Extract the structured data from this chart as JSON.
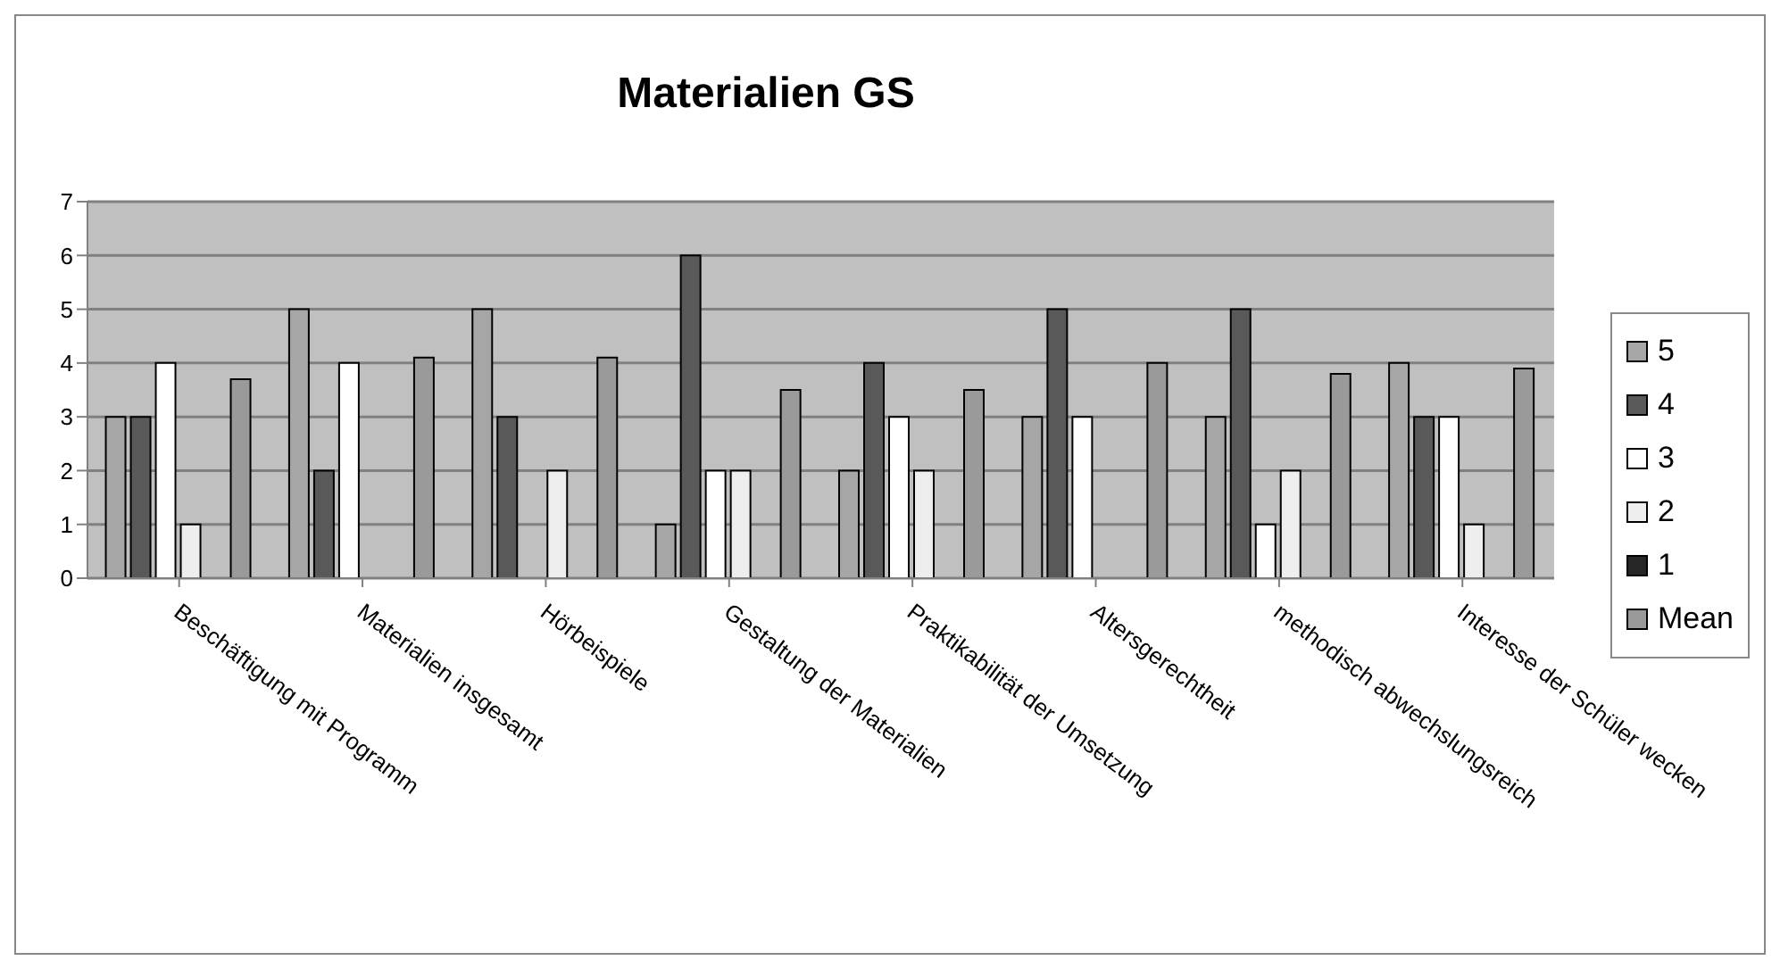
{
  "chart_data": {
    "type": "bar",
    "title": "Materialien GS",
    "categories": [
      "Beschäftigung mit Programm",
      "Materialien insgesamt",
      "Hörbeispiele",
      "Gestaltung der Materialien",
      "Praktikabilität der Umsetzung",
      "Altersgerechtheit",
      "methodisch abwechslungsreich",
      "Interesse der Schüler wecken"
    ],
    "series": [
      {
        "name": "5",
        "color": "#a6a6a6",
        "values": [
          3,
          5,
          5,
          1,
          2,
          3,
          3,
          4
        ]
      },
      {
        "name": "4",
        "color": "#595959",
        "values": [
          3,
          2,
          3,
          6,
          4,
          5,
          5,
          3
        ]
      },
      {
        "name": "3",
        "color": "#ffffff",
        "values": [
          4,
          4,
          0,
          2,
          3,
          3,
          1,
          3
        ]
      },
      {
        "name": "2",
        "color": "#eeeeee",
        "values": [
          1,
          0,
          2,
          2,
          2,
          0,
          2,
          1
        ]
      },
      {
        "name": "1",
        "color": "#262626",
        "values": [
          0,
          0,
          0,
          0,
          0,
          0,
          0,
          0
        ]
      },
      {
        "name": "Mean",
        "color": "#9a9a9a",
        "values": [
          3.7,
          4.1,
          4.1,
          3.5,
          3.5,
          4.0,
          3.8,
          3.9
        ]
      }
    ],
    "ylim": [
      0,
      7
    ],
    "yticks": [
      0,
      1,
      2,
      3,
      4,
      5,
      6,
      7
    ],
    "grid": "y",
    "legend": "right"
  }
}
